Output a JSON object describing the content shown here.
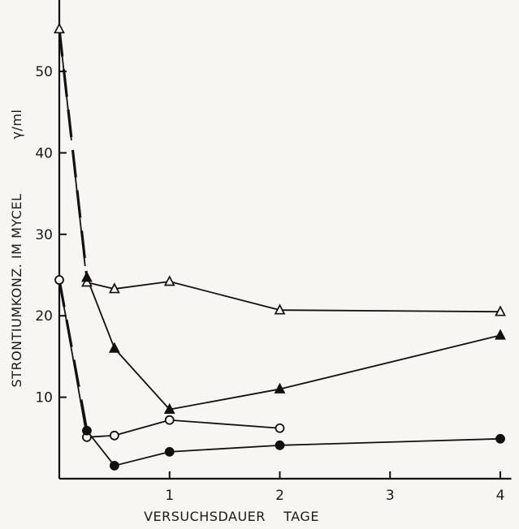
{
  "chart_data": {
    "type": "line",
    "xlabel": "VERSUCHSDAUER    TAGE",
    "ylabel": "STRONTIUMKONZ. IM MYCEL",
    "yunit": "γ/ml",
    "x_ticks": [
      {
        "value": 1,
        "label": "1"
      },
      {
        "value": 2,
        "label": "2"
      },
      {
        "value": 3,
        "label": "3"
      },
      {
        "value": 4,
        "label": "4"
      }
    ],
    "y_ticks": [
      {
        "value": 10,
        "label": "10"
      },
      {
        "value": 20,
        "label": "20"
      },
      {
        "value": 30,
        "label": "30"
      },
      {
        "value": 40,
        "label": "40"
      },
      {
        "value": 50,
        "label": "50"
      }
    ],
    "xlim": [
      0,
      4.1
    ],
    "ylim": [
      0,
      58
    ],
    "grid": false,
    "series": [
      {
        "marker": "open-triangle",
        "points": [
          [
            0,
            55.2
          ],
          [
            0.25,
            24.1
          ],
          [
            0.5,
            23.3
          ],
          [
            1,
            24.2
          ],
          [
            2,
            20.7
          ],
          [
            4,
            20.5
          ]
        ],
        "dashed_segments": [
          0
        ]
      },
      {
        "marker": "filled-triangle",
        "points": [
          [
            0.25,
            24.7
          ],
          [
            0.5,
            16
          ],
          [
            1,
            8.5
          ],
          [
            2,
            11
          ],
          [
            4,
            17.6
          ]
        ],
        "dashed_from_start": {
          "from": [
            0,
            55.2
          ]
        }
      },
      {
        "marker": "open-circle",
        "points": [
          [
            0,
            24.4
          ],
          [
            0.25,
            5.1
          ],
          [
            0.5,
            5.3
          ],
          [
            1,
            7.2
          ],
          [
            2,
            6.2
          ]
        ],
        "dashed_segments": []
      },
      {
        "marker": "filled-circle",
        "points": [
          [
            0.25,
            5.9
          ],
          [
            0.5,
            1.6
          ],
          [
            1,
            3.3
          ],
          [
            2,
            4.1
          ],
          [
            4,
            4.9
          ]
        ],
        "dashed_from_start": {
          "from": [
            0,
            24.4
          ]
        }
      }
    ]
  }
}
